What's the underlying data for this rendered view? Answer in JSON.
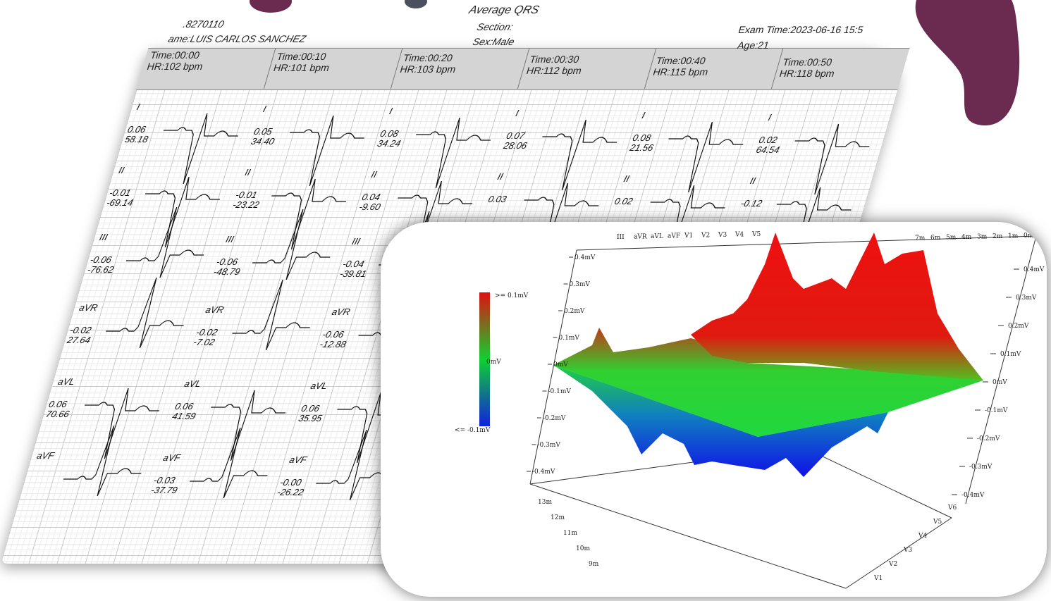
{
  "header": {
    "title": "Average QRS",
    "patient_id": ".8270110",
    "name": "ame:LUIS CARLOS SANCHEZ",
    "section": "Section:",
    "sex": "Sex:Male",
    "exam_time": "Exam Time:2023-06-16 15:5",
    "age": "Age:21"
  },
  "columns": [
    {
      "time": "Time:00:00",
      "hr": "HR:102 bpm",
      "leads": [
        {
          "lead": "I",
          "amp": "0.06",
          "angle": "58.18"
        },
        {
          "lead": "II",
          "amp": "-0.01",
          "angle": "-69.14"
        },
        {
          "lead": "III",
          "amp": "-0.06",
          "angle": "-76.62"
        },
        {
          "lead": "aVR",
          "amp": "-0.02",
          "angle": "27.64"
        },
        {
          "lead": "aVL",
          "amp": "0.06",
          "angle": "70.66"
        },
        {
          "lead": "aVF"
        }
      ]
    },
    {
      "time": "Time:00:10",
      "hr": "HR:101 bpm",
      "leads": [
        {
          "lead": "I",
          "amp": "0.05",
          "angle": "34.40"
        },
        {
          "lead": "II",
          "amp": "-0.01",
          "angle": "-23.22"
        },
        {
          "lead": "III",
          "amp": "-0.06",
          "angle": "-48.79"
        },
        {
          "lead": "aVR",
          "amp": "-0.02",
          "angle": "-7.02"
        },
        {
          "lead": "aVL",
          "amp": "0.06",
          "angle": "41.59"
        },
        {
          "lead": "aVF",
          "amp": "-0.03",
          "angle": "-37.79"
        }
      ]
    },
    {
      "time": "Time:00:20",
      "hr": "HR:103 bpm",
      "leads": [
        {
          "lead": "I",
          "amp": "0.08",
          "angle": "34.24"
        },
        {
          "lead": "II",
          "amp": "0.04",
          "angle": "-9.60"
        },
        {
          "lead": "III",
          "amp": "-0.04",
          "angle": "-39.81"
        },
        {
          "lead": "aVR",
          "amp": "-0.06",
          "angle": "-12.88"
        },
        {
          "lead": "aVL",
          "amp": "0.06",
          "angle": "35.95"
        },
        {
          "lead": "aVF",
          "amp": "-0.00",
          "angle": "-26.22"
        }
      ]
    },
    {
      "time": "Time:00:30",
      "hr": "HR:112 bpm",
      "leads": [
        {
          "lead": "I",
          "amp": "0.07",
          "angle": "28.06"
        },
        {
          "lead": "II",
          "amp": "0.03"
        }
      ]
    },
    {
      "time": "Time:00:40",
      "hr": "HR:115 bpm",
      "leads": [
        {
          "lead": "I",
          "amp": "0.08",
          "angle": "21.56"
        },
        {
          "lead": "II",
          "amp": "0.02"
        }
      ]
    },
    {
      "time": "Time:00:50",
      "hr": "HR:118 bpm",
      "leads": [
        {
          "lead": "I",
          "amp": "0.02",
          "angle": "64.54"
        },
        {
          "lead": "II",
          "amp": "-0.12"
        }
      ]
    }
  ],
  "plot": {
    "legend": {
      "max": ">= 0.1mV",
      "mid": "0mV",
      "min": "<= -0.1mV"
    },
    "left_axis": [
      "0.4mV",
      "0.3mV",
      "0.2mV",
      "0.1mV",
      "0mV",
      "-0.1mV",
      "-0.2mV",
      "-0.3mV",
      "-0.4mV"
    ],
    "right_axis": [
      "0.4mV",
      "0.3mV",
      "0.2mV",
      "0.1mV",
      "0mV",
      "-0.1mV",
      "-0.2mV",
      "-0.3mV",
      "-0.4mV"
    ],
    "top_leads": [
      "III",
      "aVR",
      "aVL",
      "aVF",
      "V1",
      "V2",
      "V3",
      "V4",
      "V5"
    ],
    "top_times": [
      "0m",
      "1m",
      "2m",
      "3m",
      "4m",
      "5m",
      "6m",
      "7m"
    ],
    "bottom_leads": [
      "V1",
      "V2",
      "V3",
      "V4",
      "V5",
      "V6"
    ],
    "bottom_times": [
      "9m",
      "10m",
      "11m",
      "12m",
      "13m"
    ]
  }
}
